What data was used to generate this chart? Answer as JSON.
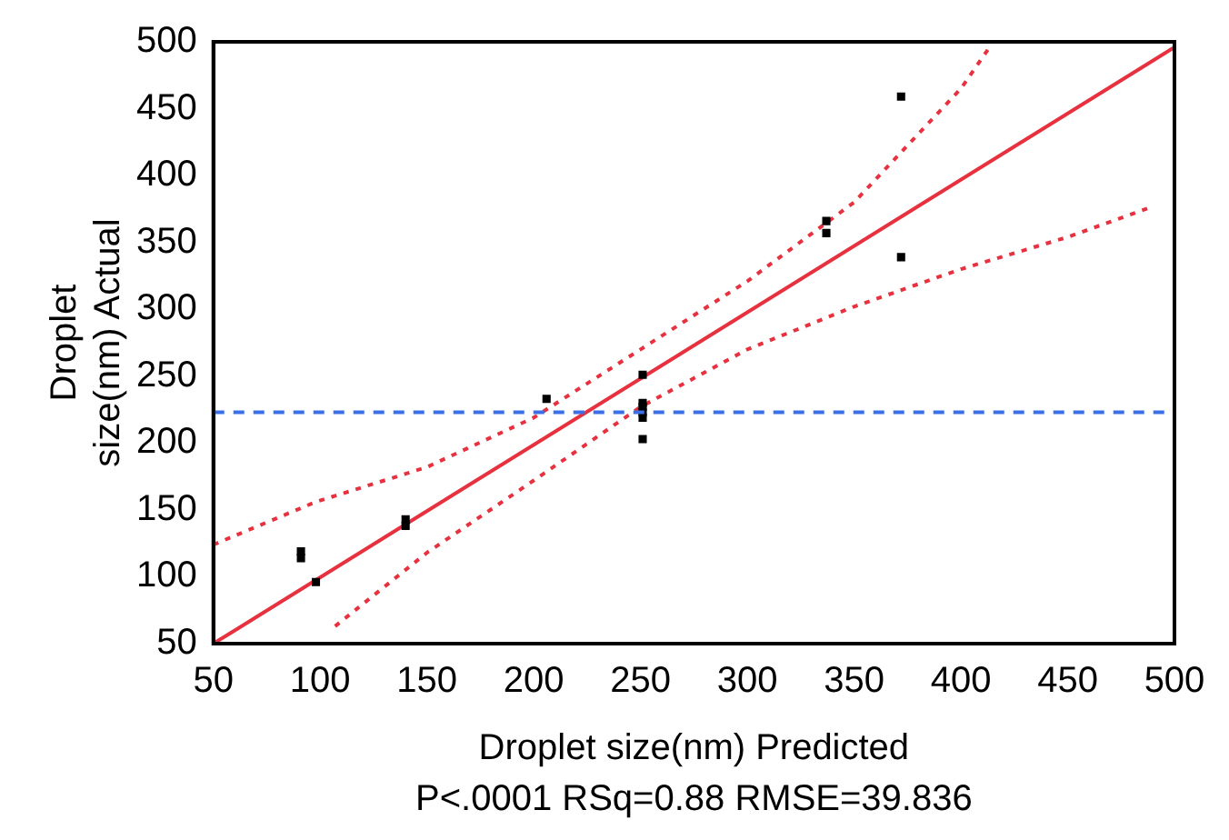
{
  "chart_data": {
    "type": "scatter",
    "xlabel": "Droplet size(nm) Predicted",
    "ylabel": "Droplet size(nm) Actual",
    "annotations": [
      "P<.0001 RSq=0.88 RMSE=39.836"
    ],
    "xlim": [
      50,
      500
    ],
    "ylim": [
      50,
      500
    ],
    "xticks": [
      50,
      100,
      150,
      200,
      250,
      300,
      350,
      400,
      450,
      500
    ],
    "yticks": [
      50,
      100,
      150,
      200,
      250,
      300,
      350,
      400,
      450,
      500
    ],
    "grid": false,
    "legend": false,
    "marker": "square",
    "series": [
      {
        "type": "scatter",
        "color": "#000000",
        "x": [
          91,
          91,
          98,
          140,
          140,
          206,
          251,
          251,
          251,
          251,
          251,
          251,
          337,
          337,
          372,
          372
        ],
        "values": [
          119,
          114,
          96,
          143,
          138,
          233,
          251,
          230,
          227,
          223,
          219,
          203,
          366,
          357,
          459,
          339
        ]
      },
      {
        "type": "line",
        "color": "#e8313f",
        "line_style": "solid",
        "marker": "none",
        "x": [
          50,
          500
        ],
        "values": [
          50,
          496
        ]
      },
      {
        "type": "line",
        "color": "#e8313f",
        "line_style": "dotted",
        "marker": "none",
        "x": [
          50,
          98,
          150,
          200,
          250,
          300,
          350,
          400,
          413
        ],
        "values": [
          124,
          156,
          182,
          219,
          270,
          321,
          380,
          465,
          495
        ]
      },
      {
        "type": "line",
        "color": "#e8313f",
        "line_style": "dotted",
        "marker": "none",
        "x": [
          107,
          150,
          200,
          250,
          300,
          350,
          400,
          450,
          490
        ],
        "values": [
          63,
          118,
          172,
          227,
          270,
          302,
          330,
          354,
          377
        ]
      }
    ],
    "ref_lines": [
      {
        "axis": "y",
        "value": 223,
        "color": "#3a6fe8",
        "line_style": "dashed"
      }
    ]
  }
}
